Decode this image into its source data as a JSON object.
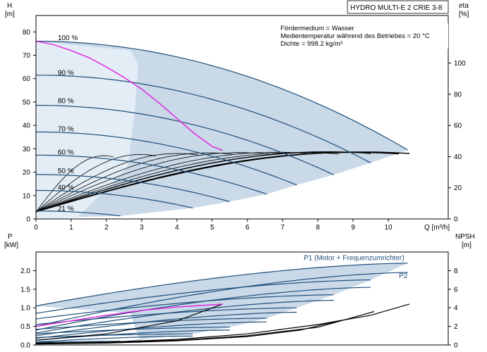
{
  "colors": {
    "envelope": "#c9d9e8",
    "envelope_light": "#e3edf6",
    "speed_curve": "#1f4e79",
    "system_curve": "#e020e0",
    "black_curve": "#000000",
    "axis": "#000000"
  },
  "chart_data": [
    {
      "type": "line",
      "title": "HYDRO MULTI-E 2 CRIE 3-8",
      "info_lines": [
        "Fördermedium = Wasser",
        "Medientemperatur während des Betriebes = 20 °C",
        "Dichte = 998.2 kg/m³"
      ],
      "xlabel": "Q [m³/h]",
      "ylabel_title": "H",
      "ylabel_unit": "[m]",
      "y2label_title": "eta",
      "y2label_unit": "[%]",
      "xlim": [
        0,
        11.7
      ],
      "ylim": [
        0,
        87
      ],
      "y2lim": [
        0,
        130.5
      ],
      "x_ticks": [
        0,
        1,
        2,
        3,
        4,
        5,
        6,
        7,
        8,
        9,
        10
      ],
      "y_ticks": [
        0,
        10,
        20,
        30,
        40,
        50,
        60,
        70,
        80
      ],
      "y2_ticks": [
        0,
        20,
        40,
        60,
        80,
        100
      ],
      "speed_labels": [
        {
          "text": "100 %",
          "x": 0.62,
          "y": 76.5
        },
        {
          "text": "90 %",
          "x": 0.62,
          "y": 61.5
        },
        {
          "text": "80 %",
          "x": 0.62,
          "y": 49.5
        },
        {
          "text": "70 %",
          "x": 0.62,
          "y": 37.5
        },
        {
          "text": "60 %",
          "x": 0.62,
          "y": 27.5
        },
        {
          "text": "50 %",
          "x": 0.62,
          "y": 19.5
        },
        {
          "text": "40 %",
          "x": 0.62,
          "y": 12.5
        },
        {
          "text": "21 %",
          "x": 0.62,
          "y": 3.5
        }
      ],
      "head_curves": [
        {
          "H0": 76,
          "Qmax": 10.55,
          "Hend": 29.5
        },
        {
          "H0": 61.5,
          "Qmax": 9.5,
          "Hend": 24
        },
        {
          "H0": 48.6,
          "Qmax": 8.45,
          "Hend": 18.9
        },
        {
          "H0": 37.2,
          "Qmax": 7.4,
          "Hend": 14.5
        },
        {
          "H0": 27.3,
          "Qmax": 6.55,
          "Hend": 10.6
        },
        {
          "H0": 19.0,
          "Qmax": 5.5,
          "Hend": 7.4
        },
        {
          "H0": 12.2,
          "Qmax": 4.45,
          "Hend": 4.7
        },
        {
          "H0": 3.4,
          "Qmax": 2.4,
          "Hend": 1.3
        }
      ],
      "system_curve": {
        "x": [
          0,
          0.5,
          1,
          1.5,
          2,
          2.5,
          3,
          3.5,
          4,
          4.5,
          5,
          5.3
        ],
        "y": [
          76,
          74.5,
          72,
          69,
          65,
          60.5,
          55.5,
          49.5,
          43,
          36.5,
          31,
          29.3
        ]
      },
      "efficiency_curves": [
        {
          "Qmax": 10.6,
          "Hend": 21,
          "k": 0.42
        },
        {
          "Qmax": 10.3,
          "Hend": 19.5,
          "k": 0.44
        },
        {
          "Qmax": 9.5,
          "Hend": 21.5,
          "k": 0.46
        },
        {
          "Qmax": 8.6,
          "Hend": 19,
          "k": 0.5
        },
        {
          "Qmax": 7.8,
          "Hend": 20,
          "k": 0.54
        },
        {
          "Qmax": 6.6,
          "Hend": 18.5,
          "k": 0.58
        },
        {
          "Qmax": 5.6,
          "Hend": 17.5,
          "k": 0.63
        },
        {
          "Qmax": 4.6,
          "Hend": 15,
          "k": 0.7
        },
        {
          "Qmax": 3.4,
          "Hend": 11,
          "k": 0.8
        },
        {
          "Qmax": 2.2,
          "Hend": 6,
          "k": 0.95
        }
      ]
    },
    {
      "type": "line",
      "ylabel_title": "P",
      "ylabel_unit": "[kW]",
      "y2label_title": "NPSH",
      "y2label_unit": "[m]",
      "xlim": [
        0,
        11.7
      ],
      "ylim": [
        0,
        2.5
      ],
      "y2lim": [
        0,
        10
      ],
      "y_ticks": [
        0.0,
        0.5,
        1.0,
        1.5,
        2.0
      ],
      "y_tick_labels": [
        "0.0",
        "0.5",
        "1.0",
        "1.5",
        "2.0"
      ],
      "y2_ticks": [
        0,
        2,
        4,
        6,
        8
      ],
      "series_labels": [
        {
          "text": "P1 (Motor + Frequenzumrichter)",
          "x": 7.6,
          "y": 2.28
        },
        {
          "text": "P2",
          "x": 10.3,
          "y": 1.8
        }
      ],
      "p1_curves": [
        {
          "P0": 1.05,
          "Qmax": 10.55,
          "Pend": 2.2
        },
        {
          "P0": 0.85,
          "Qmax": 9.5,
          "Pend": 1.75
        },
        {
          "P0": 0.7,
          "Qmax": 8.45,
          "Pend": 1.35
        },
        {
          "P0": 0.55,
          "Qmax": 7.4,
          "Pend": 1.0
        },
        {
          "P0": 0.42,
          "Qmax": 6.55,
          "Pend": 0.72
        },
        {
          "P0": 0.3,
          "Qmax": 5.5,
          "Pend": 0.48
        },
        {
          "P0": 0.2,
          "Qmax": 4.45,
          "Pend": 0.3
        },
        {
          "P0": 0.07,
          "Qmax": 2.4,
          "Pend": 0.1
        }
      ],
      "p2_curves": [
        {
          "P0": 0.5,
          "Qmax": 10.55,
          "Pend": 1.95
        },
        {
          "P0": 0.4,
          "Qmax": 9.5,
          "Pend": 1.55
        },
        {
          "P0": 0.32,
          "Qmax": 8.45,
          "Pend": 1.2
        },
        {
          "P0": 0.25,
          "Qmax": 7.4,
          "Pend": 0.88
        },
        {
          "P0": 0.18,
          "Qmax": 6.55,
          "Pend": 0.62
        },
        {
          "P0": 0.13,
          "Qmax": 5.5,
          "Pend": 0.4
        },
        {
          "P0": 0.08,
          "Qmax": 4.45,
          "Pend": 0.24
        }
      ],
      "system_power": {
        "x": [
          0,
          1,
          2,
          3,
          4,
          5,
          5.3
        ],
        "y": [
          0.5,
          0.65,
          0.8,
          0.93,
          1.02,
          1.08,
          1.1
        ]
      },
      "npsh_curves": [
        {
          "x": [
            0,
            2,
            4,
            6,
            8,
            9.5,
            10.6
          ],
          "y": [
            0.2,
            0.3,
            0.6,
            1.2,
            2.2,
            3.2,
            4.4
          ]
        },
        {
          "x": [
            0,
            2,
            4,
            6,
            8,
            9.6
          ],
          "y": [
            0.15,
            0.25,
            0.5,
            1.0,
            1.9,
            3.6
          ]
        },
        {
          "x": [
            0,
            2,
            4,
            6,
            7.5,
            8.6
          ],
          "y": [
            0.1,
            0.2,
            0.45,
            0.9,
            1.6,
            2.6
          ]
        },
        {
          "x": [
            0,
            2,
            4,
            5.3
          ],
          "y": [
            0.5,
            1.2,
            2.6,
            4.4
          ]
        }
      ]
    }
  ]
}
